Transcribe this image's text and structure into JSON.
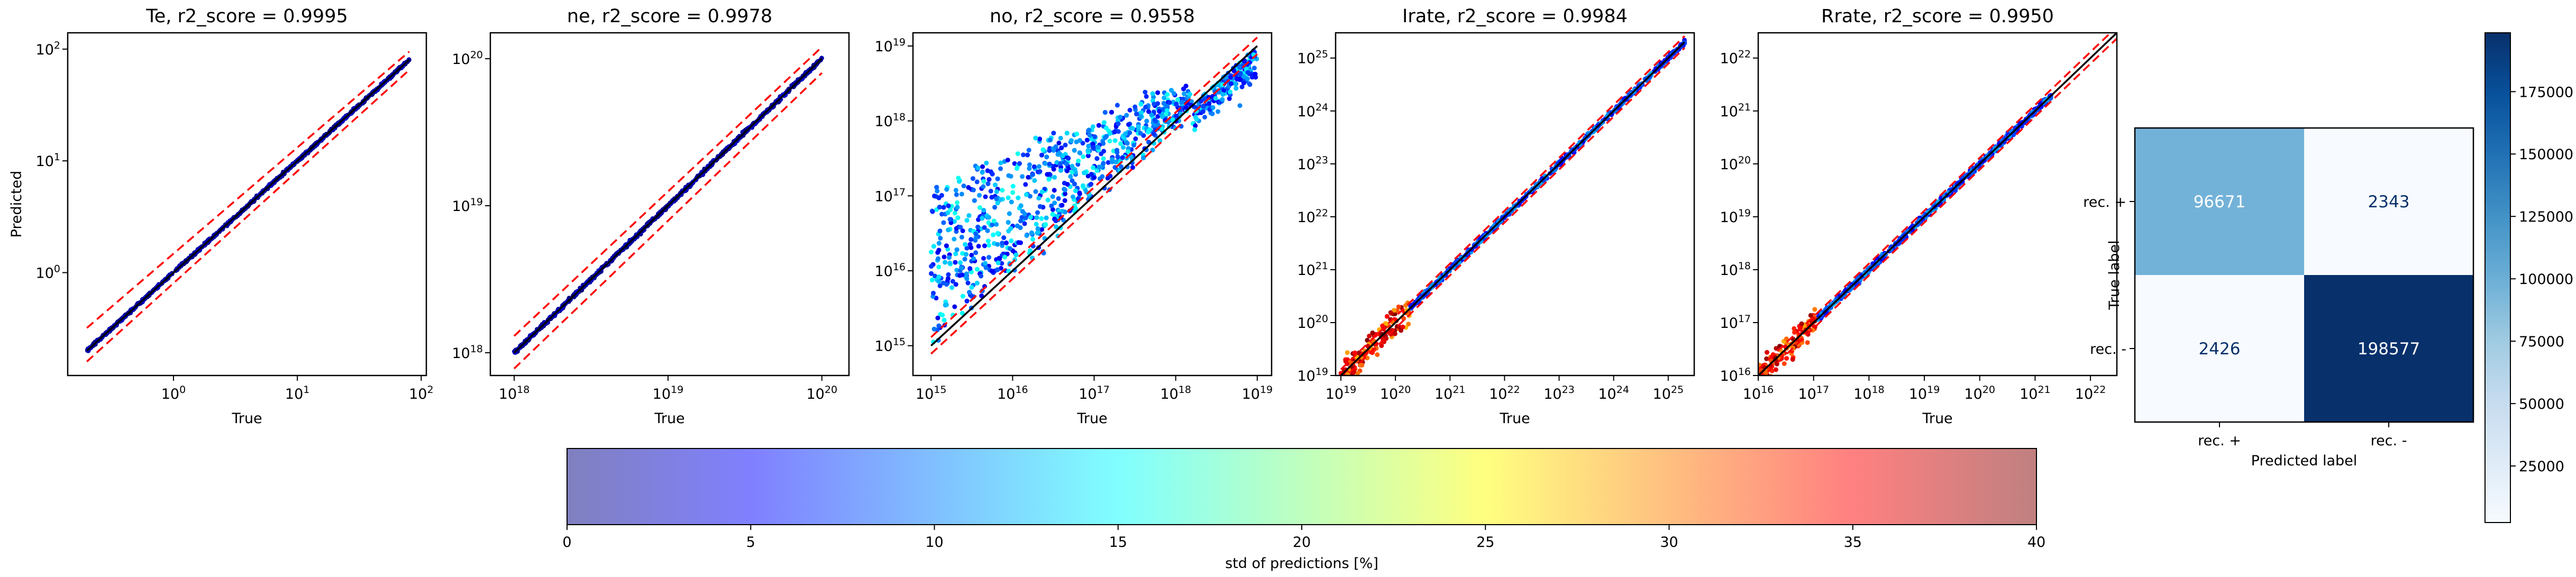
{
  "chart_data": [
    {
      "type": "scatter",
      "title": "Te, r2_score = 0.9995",
      "xlabel": "True",
      "ylabel": "Predicted",
      "scale": "log",
      "xlim": [
        0.14,
        110
      ],
      "ylim": [
        0.12,
        140
      ],
      "xticks": [
        {
          "v": 1,
          "m": "0"
        },
        {
          "v": 10,
          "m": "1"
        },
        {
          "v": 100,
          "m": "2"
        }
      ],
      "yticks": [
        {
          "v": 1,
          "m": "0"
        },
        {
          "v": 10,
          "m": "1"
        },
        {
          "v": 100,
          "m": "2"
        }
      ],
      "identity_line": [
        [
          0.2,
          0.2
        ],
        [
          80,
          80
        ]
      ],
      "band_upper": [
        [
          0.2,
          0.32
        ],
        [
          80,
          95
        ]
      ],
      "band_lower": [
        [
          0.2,
          0.16
        ],
        [
          80,
          65
        ]
      ],
      "point_range": [
        0.2,
        80
      ],
      "point_spread": 0.02,
      "std_percent_typical": 0
    },
    {
      "type": "scatter",
      "title": "ne, r2_score = 0.9978",
      "xlabel": "True",
      "ylabel": "",
      "scale": "log",
      "xlim": [
        7e+17,
        1.5e+20
      ],
      "ylim": [
        7e+17,
        1.5e+20
      ],
      "xticks": [
        {
          "v": 1e+18,
          "m": "18"
        },
        {
          "v": 1e+19,
          "m": "19"
        },
        {
          "v": 1e+20,
          "m": "20"
        }
      ],
      "yticks": [
        {
          "v": 1e+18,
          "m": "18"
        },
        {
          "v": 1e+19,
          "m": "19"
        },
        {
          "v": 1e+20,
          "m": "20"
        }
      ],
      "identity_line": [
        [
          1e+18,
          1e+18
        ],
        [
          1e+20,
          1e+20
        ]
      ],
      "band_upper": [
        [
          1e+18,
          1.3e+18
        ],
        [
          1e+20,
          1.2e+20
        ]
      ],
      "band_lower": [
        [
          1e+18,
          7.8e+17
        ],
        [
          1e+20,
          8e+19
        ]
      ],
      "point_range": [
        1e+18,
        1e+20
      ],
      "point_spread": 0.02,
      "std_percent_typical": 0
    },
    {
      "type": "scatter",
      "title": "no, r2_score = 0.9558",
      "xlabel": "True",
      "ylabel": "",
      "scale": "log",
      "xlim": [
        600000000000000.0,
        1.5e+19
      ],
      "ylim": [
        400000000000000.0,
        1.5e+19
      ],
      "xticks": [
        {
          "v": 1000000000000000.0,
          "m": "15"
        },
        {
          "v": 1e+16,
          "m": "16"
        },
        {
          "v": 1e+17,
          "m": "17"
        },
        {
          "v": 1e+18,
          "m": "18"
        },
        {
          "v": 1e+19,
          "m": "19"
        }
      ],
      "yticks": [
        {
          "v": 1000000000000000.0,
          "m": "15"
        },
        {
          "v": 1e+16,
          "m": "16"
        },
        {
          "v": 1e+17,
          "m": "17"
        },
        {
          "v": 1e+18,
          "m": "18"
        },
        {
          "v": 1e+19,
          "m": "19"
        }
      ],
      "identity_line": [
        [
          1000000000000000.0,
          1000000000000000.0
        ],
        [
          1e+19,
          1e+19
        ]
      ],
      "band_upper": [
        [
          1000000000000000.0,
          1300000000000000.0
        ],
        [
          1e+19,
          1.3e+19
        ]
      ],
      "band_lower": [
        [
          1000000000000000.0,
          780000000000000.0
        ],
        [
          1e+19,
          7.8e+18
        ]
      ],
      "point_range": [
        1000000000000000.0,
        1e+19
      ],
      "point_spread": 0.9,
      "std_percent_typical": 8
    },
    {
      "type": "scatter",
      "title": "Irate, r2_score = 0.9984",
      "xlabel": "True",
      "ylabel": "",
      "scale": "log",
      "xlim": [
        8e+18,
        3e+25
      ],
      "ylim": [
        1e+19,
        3e+25
      ],
      "xticks": [
        {
          "v": 1e+19,
          "m": "19"
        },
        {
          "v": 1e+20,
          "m": "20"
        },
        {
          "v": 1e+21,
          "m": "21"
        },
        {
          "v": 1e+22,
          "m": "22"
        },
        {
          "v": 1e+23,
          "m": "23"
        },
        {
          "v": 1e+24,
          "m": "24"
        },
        {
          "v": 1e+25,
          "m": "25"
        }
      ],
      "yticks": [
        {
          "v": 1e+19,
          "m": "19"
        },
        {
          "v": 1e+20,
          "m": "20"
        },
        {
          "v": 1e+21,
          "m": "21"
        },
        {
          "v": 1e+22,
          "m": "22"
        },
        {
          "v": 1e+23,
          "m": "23"
        },
        {
          "v": 1e+24,
          "m": "24"
        },
        {
          "v": 1e+25,
          "m": "25"
        }
      ],
      "identity_line": [
        [
          1e+19,
          1e+19
        ],
        [
          2e+25,
          2e+25
        ]
      ],
      "band_upper": [
        [
          1e+19,
          1.3e+19
        ],
        [
          2e+25,
          2.6e+25
        ]
      ],
      "band_lower": [
        [
          1e+19,
          7.8e+18
        ],
        [
          2e+25,
          1.56e+25
        ]
      ],
      "point_range": [
        1e+19,
        2e+25
      ],
      "point_spread": 0.08,
      "std_percent_typical": 30
    },
    {
      "type": "scatter",
      "title": "Rrate, r2_score = 0.9950",
      "xlabel": "True",
      "ylabel": "",
      "scale": "log",
      "xlim": [
        1e+16,
        3e+22
      ],
      "ylim": [
        1e+16,
        3e+22
      ],
      "xticks": [
        {
          "v": 1e+16,
          "m": "16"
        },
        {
          "v": 1e+17,
          "m": "17"
        },
        {
          "v": 1e+18,
          "m": "18"
        },
        {
          "v": 1e+19,
          "m": "19"
        },
        {
          "v": 1e+20,
          "m": "20"
        },
        {
          "v": 1e+21,
          "m": "21"
        },
        {
          "v": 1e+22,
          "m": "22"
        }
      ],
      "yticks": [
        {
          "v": 1e+16,
          "m": "16"
        },
        {
          "v": 1e+17,
          "m": "17"
        },
        {
          "v": 1e+18,
          "m": "18"
        },
        {
          "v": 1e+19,
          "m": "19"
        },
        {
          "v": 1e+20,
          "m": "20"
        },
        {
          "v": 1e+21,
          "m": "21"
        },
        {
          "v": 1e+22,
          "m": "22"
        }
      ],
      "identity_line": [
        [
          1e+16,
          1e+16
        ],
        [
          3e+22,
          3e+22
        ]
      ],
      "band_upper": [
        [
          1e+16,
          1.3e+16
        ],
        [
          3e+22,
          3.9e+22
        ]
      ],
      "band_lower": [
        [
          1e+16,
          7800000000000000.0
        ],
        [
          3e+22,
          2.34e+22
        ]
      ],
      "point_range": [
        1e+16,
        2e+21
      ],
      "point_spread": 0.1,
      "std_percent_typical": 30
    },
    {
      "type": "heatmap",
      "title": "",
      "xlabel": "Predicted label",
      "ylabel": "True label",
      "x_categories": [
        "rec. +",
        "rec. -"
      ],
      "y_categories": [
        "rec. +",
        "rec. -"
      ],
      "matrix": [
        [
          96671,
          2343
        ],
        [
          2426,
          198577
        ]
      ],
      "colorbar": {
        "range": [
          2343,
          198577
        ],
        "ticks": [
          25000,
          50000,
          75000,
          100000,
          125000,
          150000,
          175000
        ],
        "tick_labels": [
          "25000",
          "50000",
          "75000",
          "100000",
          "125000",
          "150000",
          "175000"
        ],
        "colormap": [
          "#f7fbff",
          "#deebf7",
          "#c6dbef",
          "#9ecae1",
          "#6baed6",
          "#4292c6",
          "#2171b5",
          "#08519c",
          "#08306b"
        ]
      }
    }
  ],
  "colorbar": {
    "label": "std of predictions [%]",
    "range": [
      0,
      40
    ],
    "ticks": [
      0,
      5,
      10,
      15,
      20,
      25,
      30,
      35,
      40
    ],
    "tick_labels": [
      "0",
      "5",
      "10",
      "15",
      "20",
      "25",
      "30",
      "35",
      "40"
    ],
    "colormap": [
      "#00007f",
      "#0000ff",
      "#007fff",
      "#00ffff",
      "#7fff7f",
      "#ffff00",
      "#ff7f00",
      "#ff0000",
      "#7f0000"
    ],
    "alpha": 0.5
  },
  "colors": {
    "identity_line": "#000000",
    "band_lines": "#ff0000",
    "confusion_text_light": "#ffffff",
    "confusion_text_dark": "#08306b"
  }
}
